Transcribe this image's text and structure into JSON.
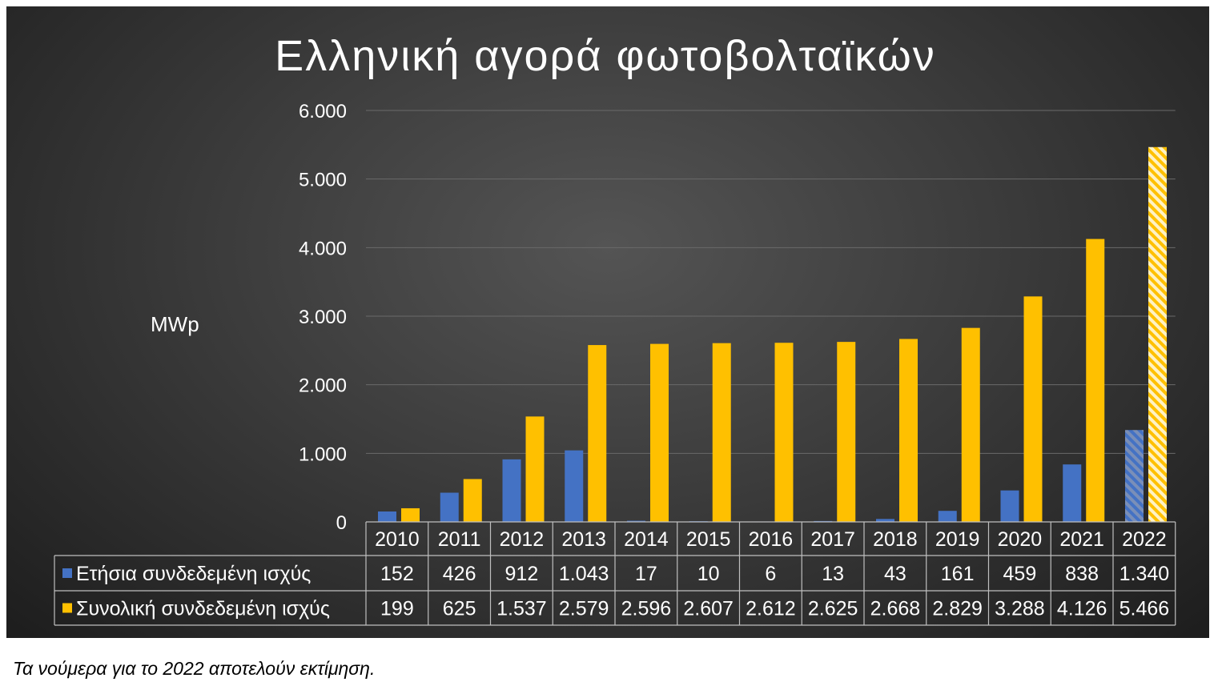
{
  "chart_data": {
    "type": "bar",
    "title": "Ελληνική αγορά φωτοβολταϊκών",
    "ylabel": "MWp",
    "ylim": [
      0,
      6000
    ],
    "yticks": [
      0,
      1000,
      2000,
      3000,
      4000,
      5000,
      6000
    ],
    "ytick_labels": [
      "0",
      "1.000",
      "2.000",
      "3.000",
      "4.000",
      "5.000",
      "6.000"
    ],
    "grid": true,
    "legend": "data-table",
    "categories": [
      "2010",
      "2011",
      "2012",
      "2013",
      "2014",
      "2015",
      "2016",
      "2017",
      "2018",
      "2019",
      "2020",
      "2021",
      "2022"
    ],
    "series": [
      {
        "name": "Ετήσια συνδεδεμένη ισχύς",
        "color": "#4472c4",
        "values": [
          152,
          426,
          912,
          1043,
          17,
          10,
          6,
          13,
          43,
          161,
          459,
          838,
          1340
        ],
        "labels": [
          "152",
          "426",
          "912",
          "1.043",
          "17",
          "10",
          "6",
          "13",
          "43",
          "161",
          "459",
          "838",
          "1.340"
        ]
      },
      {
        "name": "Συνολική συνδεδεμένη ισχύς",
        "color": "#ffc000",
        "values": [
          199,
          625,
          1537,
          2579,
          2596,
          2607,
          2612,
          2625,
          2668,
          2829,
          3288,
          4126,
          5466
        ],
        "labels": [
          "199",
          "625",
          "1.537",
          "2.579",
          "2.596",
          "2.607",
          "2.612",
          "2.625",
          "2.668",
          "2.829",
          "3.288",
          "4.126",
          "5.466"
        ]
      }
    ],
    "estimated_category": "2022"
  },
  "caption": "Τα νούμερα για το 2022 αποτελούν εκτίμηση."
}
